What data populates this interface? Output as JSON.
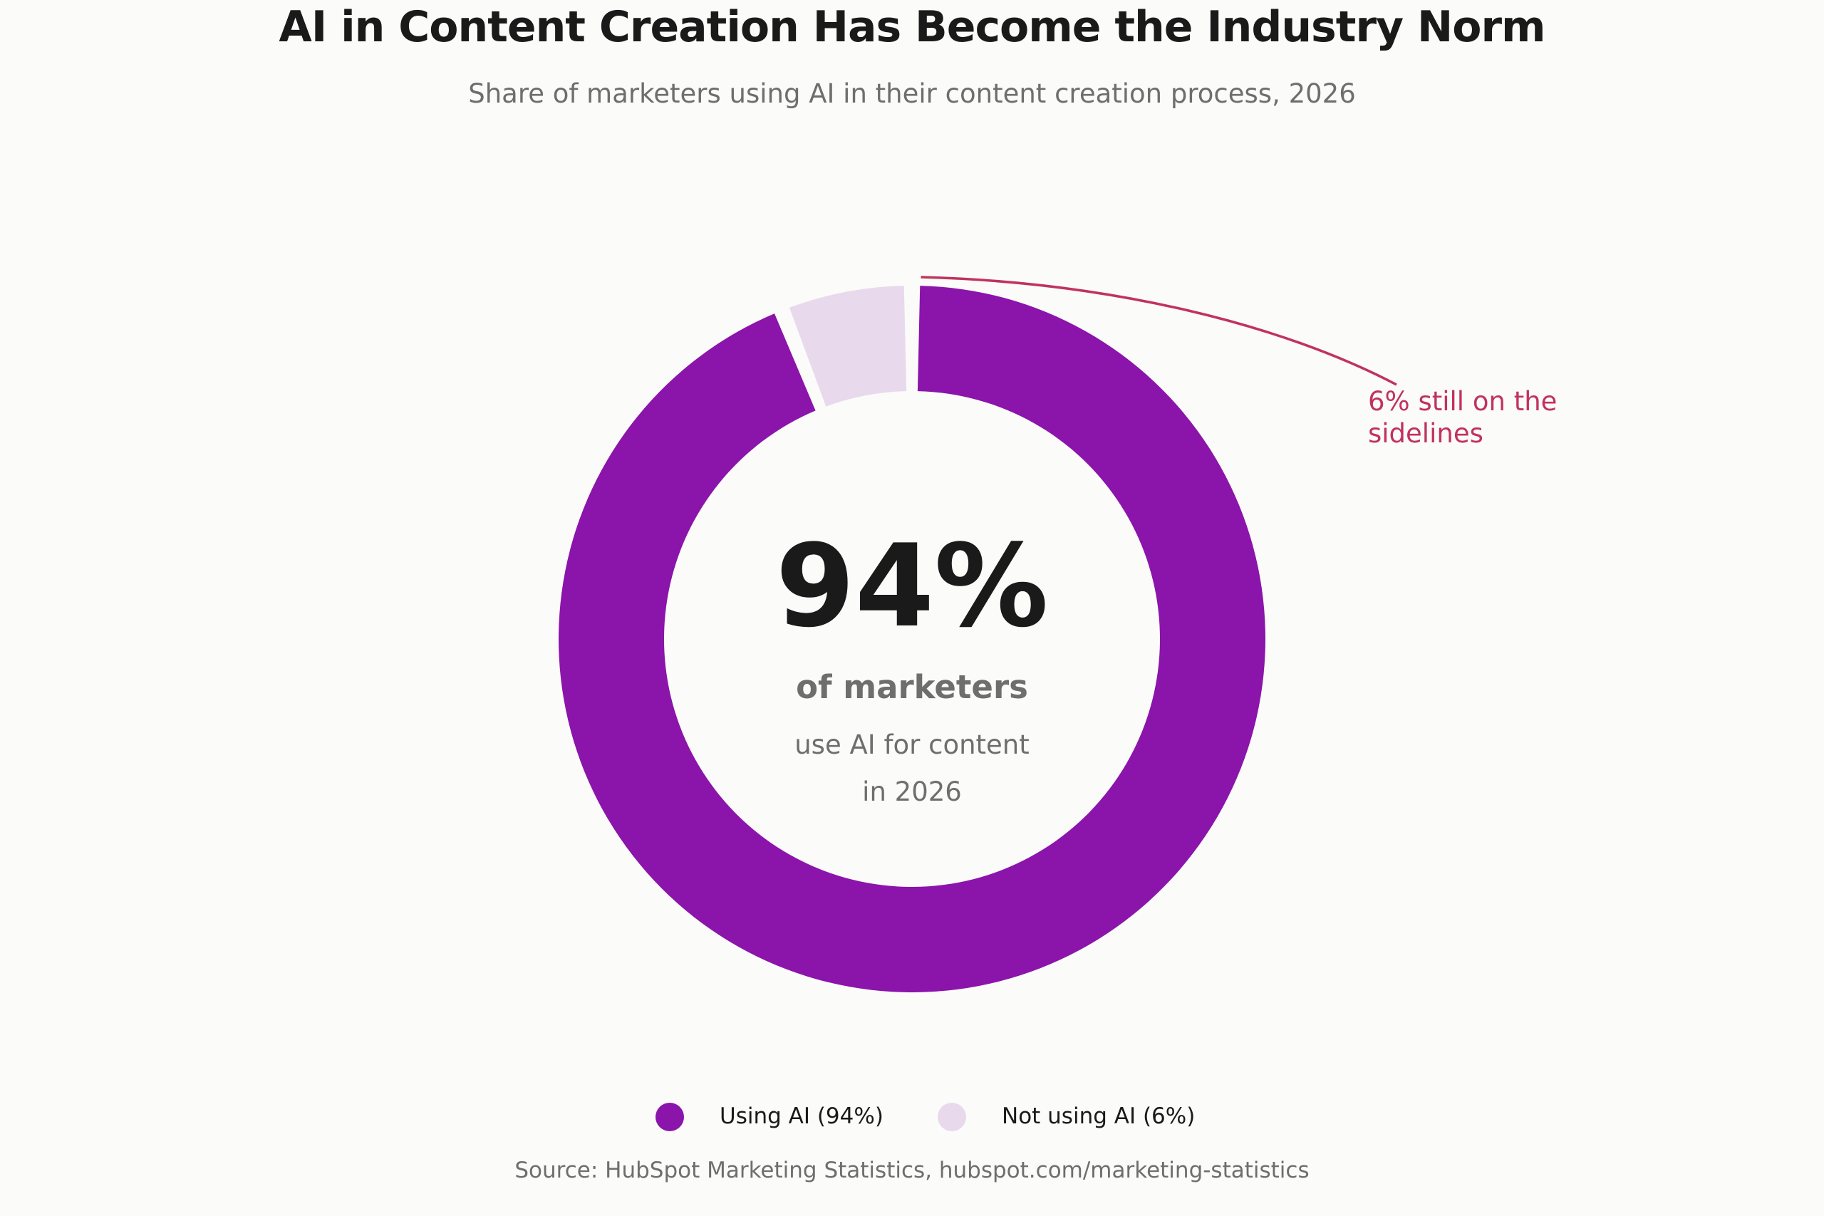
{
  "title": "AI in Content Creation Has Become the Industry Norm",
  "subtitle": "Share of marketers using AI in their content creation process, 2026",
  "colors": {
    "using": "#8b14ab",
    "not_using": "#e8d9ec",
    "annotation": "#c0335e",
    "center_big": "#1a1a1a",
    "center_text": "#6e6e6e"
  },
  "chart_data": {
    "type": "pie",
    "donut": true,
    "slices": [
      {
        "label": "Using AI",
        "value": 94,
        "color": "#8b14ab"
      },
      {
        "label": "Not using AI",
        "value": 6,
        "color": "#e8d9ec"
      }
    ],
    "center": {
      "value": "94%",
      "line1": "of marketers",
      "line2": "use AI for content",
      "line3": "in 2026"
    },
    "annotation": {
      "line1": "6% still on the",
      "line2": "sidelines",
      "target": "Not using AI"
    },
    "legend": [
      {
        "label": "Using AI (94%)",
        "color": "#8b14ab"
      },
      {
        "label": "Not using AI (6%)",
        "color": "#e8d9ec"
      }
    ],
    "legend_position": "bottom"
  },
  "source": "Source: HubSpot Marketing Statistics, hubspot.com/marketing-statistics"
}
